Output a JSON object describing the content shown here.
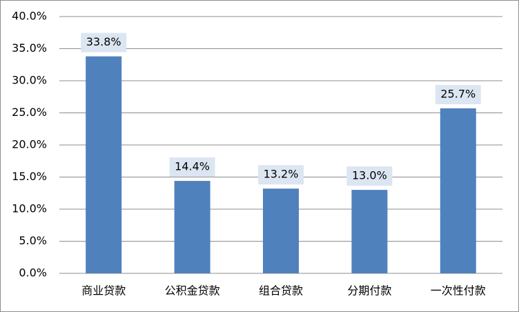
{
  "chart_data": {
    "type": "bar",
    "categories": [
      "商业贷款",
      "公积金贷款",
      "组合贷款",
      "分期付款",
      "一次性付款"
    ],
    "values": [
      33.8,
      14.4,
      13.2,
      13.0,
      25.7
    ],
    "value_labels": [
      "33.8%",
      "14.4%",
      "13.2%",
      "13.0%",
      "25.7%"
    ],
    "color": "#4f81bd",
    "ylim": [
      0,
      40
    ],
    "yticks": [
      {
        "value": 0,
        "label": "0.0%"
      },
      {
        "value": 5,
        "label": "5.0%"
      },
      {
        "value": 10,
        "label": "10.0%"
      },
      {
        "value": 15,
        "label": "15.0%"
      },
      {
        "value": 20,
        "label": "20.0%"
      },
      {
        "value": 25,
        "label": "25.0%"
      },
      {
        "value": 30,
        "label": "30.0%"
      },
      {
        "value": 35,
        "label": "35.0%"
      },
      {
        "value": 40,
        "label": "40.0%"
      }
    ],
    "grid": true
  }
}
